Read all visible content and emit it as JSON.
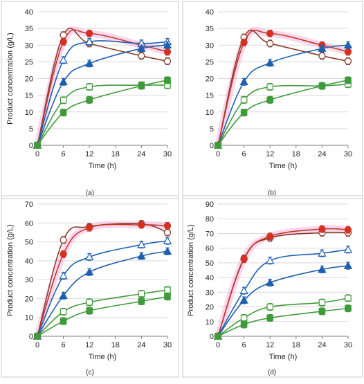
{
  "figure": {
    "colors": {
      "red": "#c0392b",
      "red_face": "#e02d1b",
      "dark_red": "#8b3a2a",
      "blue": "#1f5fb0",
      "blue_face": "#2a63c8",
      "green": "#3f9a3a",
      "green_face": "#3a9a3a",
      "highlight": "#f4a6d7",
      "grid": "#d9d9d9",
      "axis": "#7f7f7f"
    }
  },
  "chart_data": [
    {
      "type": "line",
      "panel_label": "(a)",
      "xlabel": "Time (h)",
      "ylabel": "Product concentration (g/L)",
      "x": [
        0,
        6,
        12,
        24,
        30
      ],
      "xticks": [
        0,
        6,
        12,
        18,
        24,
        30
      ],
      "xlim": [
        0,
        30
      ],
      "ylim": [
        0,
        40
      ],
      "yticks": [
        0,
        5,
        10,
        15,
        20,
        25,
        30,
        35,
        40
      ],
      "grid": "horizontal",
      "series": [
        {
          "key": "s1",
          "values": [
            0,
            33.0,
            30.5,
            26.8,
            25.2
          ],
          "marker": "circle",
          "fill": false,
          "color": "#8b3a2a"
        },
        {
          "key": "s2",
          "values": [
            0,
            31.0,
            33.5,
            30.0,
            28.0
          ],
          "marker": "circle",
          "fill": true,
          "color": "#c0392b"
        },
        {
          "key": "s3",
          "values": [
            0,
            25.5,
            31.0,
            30.5,
            31.0
          ],
          "marker": "triangle",
          "fill": false,
          "color": "#1f5fb0"
        },
        {
          "key": "s4",
          "values": [
            0,
            19.0,
            24.5,
            29.0,
            30.0
          ],
          "marker": "triangle",
          "fill": true,
          "color": "#1f5fb0"
        },
        {
          "key": "s5",
          "values": [
            0,
            13.5,
            17.5,
            18.0,
            18.0
          ],
          "marker": "square",
          "fill": false,
          "color": "#3f9a3a"
        },
        {
          "key": "s6",
          "values": [
            0,
            9.8,
            13.6,
            17.8,
            19.5
          ],
          "marker": "square",
          "fill": true,
          "color": "#3f9a3a"
        }
      ]
    },
    {
      "type": "line",
      "panel_label": "(b)",
      "xlabel": "Time (h)",
      "ylabel": "",
      "x": [
        0,
        6,
        12,
        24,
        30
      ],
      "xticks": [
        0,
        6,
        12,
        18,
        24,
        30
      ],
      "xlim": [
        0,
        30
      ],
      "ylim": [
        0,
        40
      ],
      "yticks": [
        0,
        5,
        10,
        15,
        20,
        25,
        30,
        35,
        40
      ],
      "grid": "horizontal",
      "series": [
        {
          "key": "s1",
          "values": [
            0,
            32.3,
            30.5,
            26.8,
            25.2
          ],
          "marker": "circle",
          "fill": false,
          "color": "#8b3a2a"
        },
        {
          "key": "s2",
          "values": [
            0,
            30.8,
            33.5,
            30.0,
            28.0
          ],
          "marker": "circle",
          "fill": true,
          "color": "#c0392b"
        },
        {
          "key": "s4",
          "values": [
            0,
            19.0,
            24.7,
            29.0,
            30.0
          ],
          "marker": "triangle",
          "fill": true,
          "color": "#1f5fb0"
        },
        {
          "key": "s5",
          "values": [
            0,
            13.6,
            17.5,
            17.8,
            18.3
          ],
          "marker": "square",
          "fill": false,
          "color": "#3f9a3a"
        },
        {
          "key": "s6",
          "values": [
            0,
            9.8,
            13.6,
            17.8,
            19.5
          ],
          "marker": "square",
          "fill": true,
          "color": "#3f9a3a"
        }
      ]
    },
    {
      "type": "line",
      "panel_label": "(c)",
      "xlabel": "Time (h)",
      "ylabel": "Product concentration (g/L)",
      "x": [
        0,
        6,
        12,
        24,
        30
      ],
      "xticks": [
        0,
        6,
        12,
        18,
        24,
        30
      ],
      "xlim": [
        0,
        30
      ],
      "ylim": [
        0,
        70
      ],
      "yticks": [
        0,
        10,
        20,
        30,
        40,
        50,
        60,
        70
      ],
      "grid": "horizontal",
      "series": [
        {
          "key": "s1",
          "values": [
            0,
            51.0,
            58.0,
            59.5,
            55.0
          ],
          "marker": "circle",
          "fill": false,
          "color": "#8b3a2a"
        },
        {
          "key": "s2",
          "values": [
            0,
            43.5,
            57.5,
            59.0,
            58.5
          ],
          "marker": "circle",
          "fill": true,
          "color": "#c0392b"
        },
        {
          "key": "s3",
          "values": [
            0,
            32.0,
            42.0,
            48.5,
            50.5
          ],
          "marker": "triangle",
          "fill": false,
          "color": "#1f5fb0"
        },
        {
          "key": "s4",
          "values": [
            0,
            21.5,
            34.0,
            42.5,
            45.0
          ],
          "marker": "triangle",
          "fill": true,
          "color": "#1f5fb0"
        },
        {
          "key": "s5",
          "values": [
            0,
            13.0,
            18.0,
            22.5,
            24.5
          ],
          "marker": "square",
          "fill": false,
          "color": "#3f9a3a"
        },
        {
          "key": "s6",
          "values": [
            0,
            8.0,
            13.5,
            18.5,
            21.0
          ],
          "marker": "square",
          "fill": true,
          "color": "#3f9a3a"
        }
      ]
    },
    {
      "type": "line",
      "panel_label": "(d)",
      "xlabel": "Time (h)",
      "ylabel": "Product concentration (g/L)",
      "x": [
        0,
        6,
        12,
        24,
        30
      ],
      "xticks": [
        0,
        6,
        12,
        18,
        24,
        30
      ],
      "xlim": [
        0,
        30
      ],
      "ylim": [
        0,
        90
      ],
      "yticks": [
        0,
        10,
        20,
        30,
        40,
        50,
        60,
        70,
        80,
        90
      ],
      "grid": "horizontal",
      "series": [
        {
          "key": "s1",
          "values": [
            0,
            53.0,
            67.0,
            70.5,
            70.5
          ],
          "marker": "circle",
          "fill": false,
          "color": "#8b3a2a"
        },
        {
          "key": "s2",
          "values": [
            0,
            52.5,
            68.0,
            73.0,
            72.5
          ],
          "marker": "circle",
          "fill": true,
          "color": "#c0392b"
        },
        {
          "key": "s3",
          "values": [
            0,
            31.0,
            51.5,
            56.5,
            59.0
          ],
          "marker": "triangle",
          "fill": false,
          "color": "#1f5fb0"
        },
        {
          "key": "s4",
          "values": [
            0,
            24.5,
            36.5,
            45.5,
            48.0
          ],
          "marker": "triangle",
          "fill": true,
          "color": "#1f5fb0"
        },
        {
          "key": "s5",
          "values": [
            0,
            12.5,
            20.0,
            23.0,
            26.0
          ],
          "marker": "square",
          "fill": false,
          "color": "#3f9a3a"
        },
        {
          "key": "s6",
          "values": [
            0,
            8.0,
            12.5,
            17.0,
            19.0
          ],
          "marker": "square",
          "fill": true,
          "color": "#3f9a3a"
        }
      ]
    }
  ]
}
